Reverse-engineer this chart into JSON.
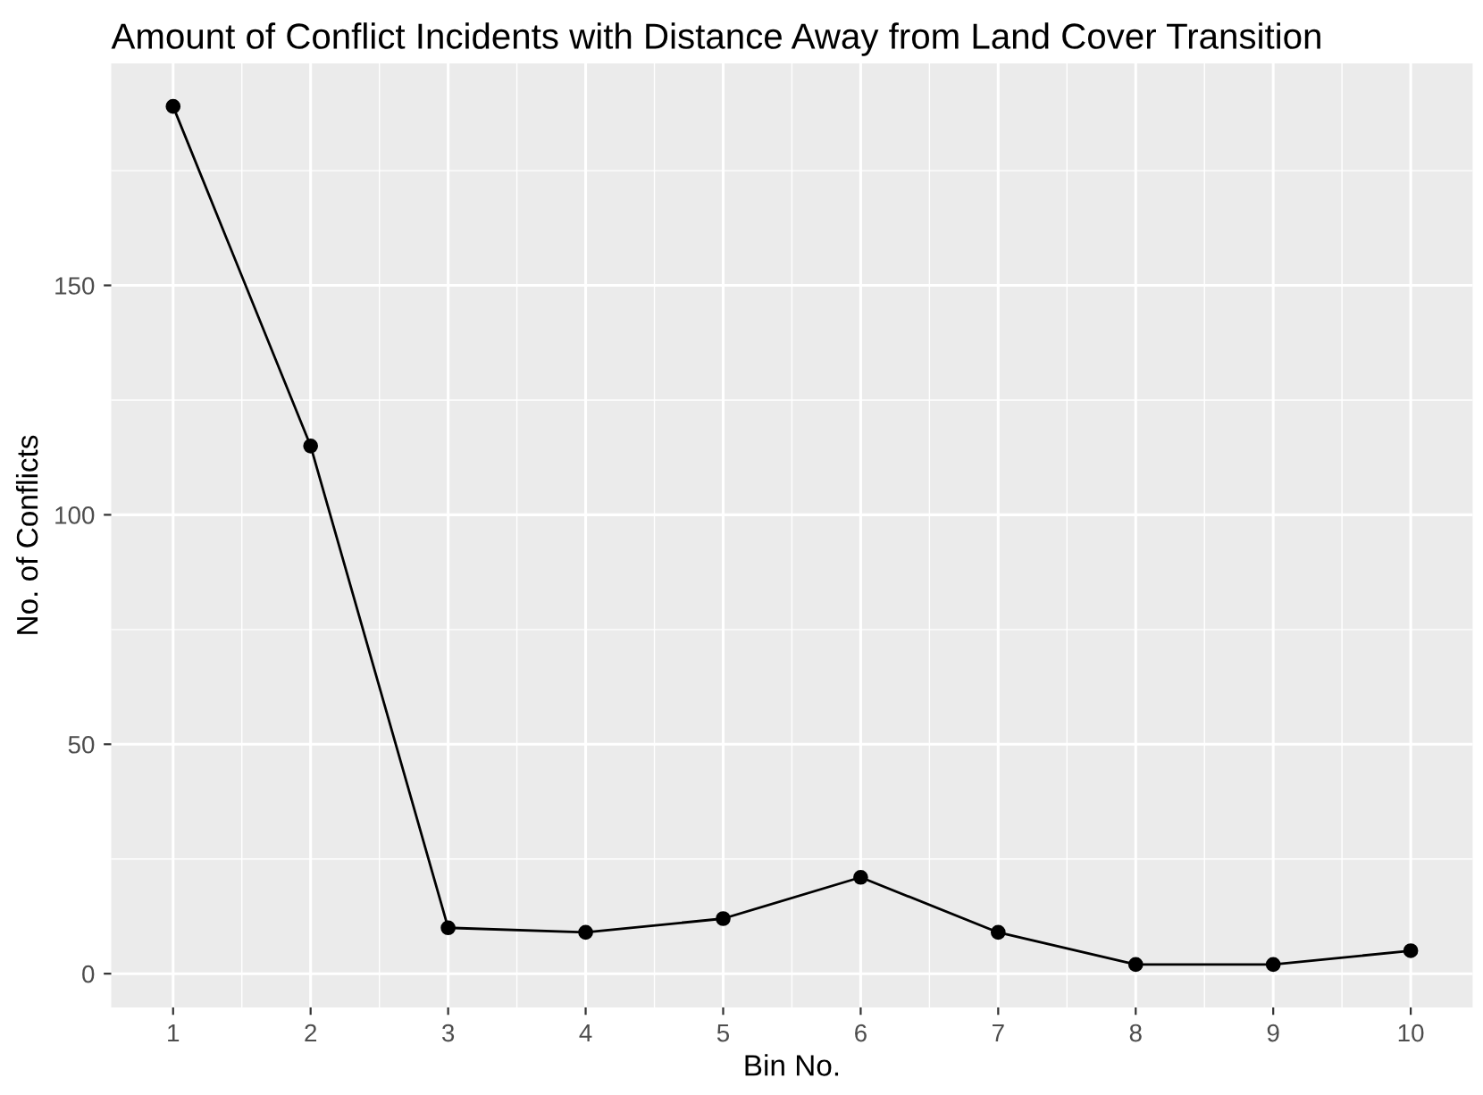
{
  "chart_data": {
    "type": "line",
    "title": "Amount of Conflict Incidents with Distance Away from Land Cover Transition",
    "xlabel": "Bin No.",
    "ylabel": "No. of Conflicts",
    "x": [
      1,
      2,
      3,
      4,
      5,
      6,
      7,
      8,
      9,
      10
    ],
    "series": [
      {
        "color": "#000000",
        "values": [
          189,
          115,
          10,
          9,
          12,
          21,
          9,
          2,
          2,
          5
        ]
      }
    ],
    "xlim": [
      0.55,
      10.45
    ],
    "xticks": [
      1,
      2,
      3,
      4,
      5,
      6,
      7,
      8,
      9,
      10
    ],
    "ylim": [
      -7.35,
      198.35
    ],
    "yticks": [
      0,
      50,
      100,
      150
    ],
    "grid": true,
    "marker": "circle",
    "line_style": "solid"
  }
}
